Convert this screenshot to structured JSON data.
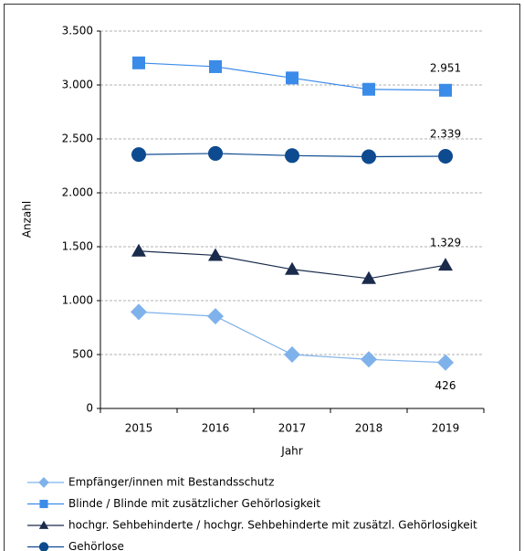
{
  "chart_data": {
    "type": "line",
    "x_label": "Jahr",
    "y_label": "Anzahl",
    "categories": [
      "2015",
      "2016",
      "2017",
      "2018",
      "2019"
    ],
    "ylim": [
      0,
      3500
    ],
    "yticks": [
      0,
      500,
      {
        "value": 1000,
        "label": "1.000"
      },
      {
        "value": 1500,
        "label": "1.500"
      },
      {
        "value": 2000,
        "label": "2.000"
      },
      {
        "value": 2500,
        "label": "2.500"
      },
      {
        "value": 3000,
        "label": "3.000"
      },
      {
        "value": 3500,
        "label": "3.500"
      }
    ],
    "grid": true,
    "legend": "bottom",
    "series": [
      {
        "name": "Empfänger/innen mit Bestandsschutz",
        "color": "#7fb2ea",
        "marker": "diamond",
        "values": [
          895,
          855,
          500,
          455,
          426
        ],
        "value_labels": [
          null,
          null,
          null,
          null,
          "426"
        ]
      },
      {
        "name": "Blinde / Blinde mit zusätzlicher Gehörlosigkeit",
        "color": "#3b8be8",
        "marker": "square",
        "values": [
          3205,
          3170,
          3065,
          2960,
          2951
        ],
        "value_labels": [
          null,
          null,
          null,
          null,
          "2.951"
        ]
      },
      {
        "name": "hochgr. Sehbehinderte / hochgr. Sehbehinderte mit zusätzl. Gehörlosigkeit",
        "color": "#1a2b4c",
        "marker": "triangle",
        "values": [
          1460,
          1420,
          1290,
          1205,
          1329
        ],
        "value_labels": [
          null,
          null,
          null,
          null,
          "1.329"
        ]
      },
      {
        "name": "Gehörlose",
        "color": "#0d4a8f",
        "marker": "circle",
        "values": [
          2355,
          2365,
          2345,
          2335,
          2339
        ],
        "value_labels": [
          null,
          null,
          null,
          null,
          "2.339"
        ]
      }
    ]
  }
}
